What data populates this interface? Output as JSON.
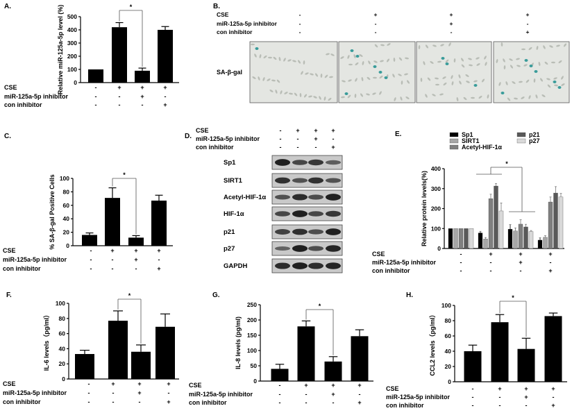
{
  "conditions": {
    "labels": [
      "CSE",
      "miR-125a-5p inhibitor",
      "con inhibitor"
    ],
    "signs": [
      [
        "-",
        "+",
        "+",
        "+"
      ],
      [
        "-",
        "-",
        "+",
        "-"
      ],
      [
        "-",
        "-",
        "-",
        "+"
      ]
    ]
  },
  "panels": {
    "A": "A.",
    "B": "B.",
    "C": "C.",
    "D": "D.",
    "E": "E.",
    "F": "F.",
    "G": "G.",
    "H": "H."
  },
  "significance": "*",
  "stain_label": "SA-β-gal",
  "blot": {
    "proteins": [
      "Sp1",
      "SIRT1",
      "Acetyl-HIF-1α",
      "HIF-1α",
      "p21",
      "p27",
      "GAPDH"
    ],
    "band_intensity": [
      [
        0.95,
        0.6,
        0.75,
        0.4
      ],
      [
        0.8,
        0.5,
        0.8,
        0.5
      ],
      [
        0.5,
        0.85,
        0.55,
        0.95
      ],
      [
        0.6,
        0.95,
        0.6,
        0.75
      ],
      [
        0.65,
        0.8,
        0.55,
        0.95
      ],
      [
        0.35,
        0.95,
        0.55,
        0.9
      ],
      [
        0.85,
        0.95,
        0.85,
        0.9
      ]
    ]
  },
  "chart_data": [
    {
      "id": "A",
      "type": "bar",
      "title": "",
      "xlabel": "",
      "ylabel": "Relative miR-125a-5p level (%)",
      "ylim": [
        0,
        500
      ],
      "ticks": [
        0,
        100,
        200,
        300,
        400,
        500
      ],
      "values": [
        100,
        420,
        90,
        400
      ],
      "errors": [
        0,
        35,
        20,
        25
      ],
      "bar_color": "#000000",
      "grid": false
    },
    {
      "id": "C",
      "type": "bar",
      "title": "",
      "xlabel": "",
      "ylabel": "% SA-β-gal Positive Cells",
      "ylim": [
        0,
        100
      ],
      "ticks": [
        0,
        20,
        40,
        60,
        80,
        100
      ],
      "values": [
        16,
        71,
        12,
        67
      ],
      "errors": [
        3,
        15,
        3,
        8
      ],
      "bar_color": "#000000",
      "grid": false
    },
    {
      "id": "E",
      "type": "bar",
      "title": "",
      "xlabel": "",
      "ylabel": "Relative protein levels(%)",
      "ylim": [
        0,
        400
      ],
      "ticks": [
        0,
        100,
        200,
        300,
        400
      ],
      "legend": "top",
      "grid": false,
      "series": [
        {
          "name": "Sp1",
          "color": "#000000",
          "values": [
            100,
            78,
            97,
            42
          ],
          "errors": [
            0,
            8,
            23,
            12
          ]
        },
        {
          "name": "SIRT1",
          "color": "#a6a6a6",
          "values": [
            100,
            48,
            88,
            56
          ],
          "errors": [
            0,
            7,
            15,
            8
          ]
        },
        {
          "name": "Acetyl-HIF-1α",
          "color": "#7f7f7f",
          "values": [
            100,
            250,
            122,
            233
          ],
          "errors": [
            0,
            22,
            22,
            25
          ]
        },
        {
          "name": "p21",
          "color": "#595959",
          "values": [
            100,
            313,
            108,
            278
          ],
          "errors": [
            0,
            12,
            13,
            32
          ]
        },
        {
          "name": "p27",
          "color": "#d9d9d9",
          "values": [
            100,
            188,
            85,
            258
          ],
          "errors": [
            0,
            40,
            5,
            18
          ]
        }
      ]
    },
    {
      "id": "F",
      "type": "bar",
      "title": "",
      "xlabel": "",
      "ylabel": "IL-6 levels（pg/ml）",
      "ylim": [
        0,
        100
      ],
      "ticks": [
        0,
        20,
        40,
        60,
        80,
        100
      ],
      "values": [
        33,
        77,
        36,
        69
      ],
      "errors": [
        5,
        13,
        9,
        17
      ],
      "bar_color": "#000000",
      "grid": false
    },
    {
      "id": "G",
      "type": "bar",
      "title": "",
      "xlabel": "",
      "ylabel": "IL-8 levels (pg/ml)",
      "ylim": [
        0,
        250
      ],
      "ticks": [
        0,
        50,
        100,
        150,
        200,
        250
      ],
      "values": [
        40,
        179,
        64,
        147
      ],
      "errors": [
        15,
        18,
        16,
        21
      ],
      "bar_color": "#000000",
      "grid": false
    },
    {
      "id": "H",
      "type": "bar",
      "title": "",
      "xlabel": "",
      "ylabel": "CCL2 levels（pg/ml）",
      "ylim": [
        0,
        100
      ],
      "ticks": [
        0,
        20,
        40,
        60,
        80,
        100
      ],
      "values": [
        40,
        78,
        43,
        86
      ],
      "errors": [
        8,
        10,
        14,
        4
      ],
      "bar_color": "#000000",
      "grid": false
    }
  ]
}
